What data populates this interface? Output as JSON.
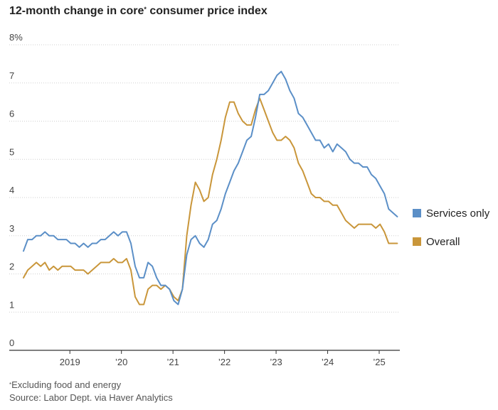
{
  "chart_data": {
    "type": "line",
    "title_main": "12-month change in core",
    "title_sup": "*",
    "title_end": " consumer price index",
    "y_top_label": "8%",
    "ylim": [
      0,
      8
    ],
    "y_ticks": [
      0,
      1,
      2,
      3,
      4,
      5,
      6,
      7
    ],
    "xlim": [
      2018.1,
      2025.4
    ],
    "x_ticks": [
      {
        "value": 2019,
        "label": "2019"
      },
      {
        "value": 2020,
        "label": "’20"
      },
      {
        "value": 2021,
        "label": "’21"
      },
      {
        "value": 2022,
        "label": "’22"
      },
      {
        "value": 2023,
        "label": "’23"
      },
      {
        "value": 2024,
        "label": "’24"
      },
      {
        "value": 2025,
        "label": "’25"
      }
    ],
    "x_start": 2018.1,
    "x_step_months": 1,
    "series": [
      {
        "name": "Services only",
        "color": "#5b8fc7",
        "values": [
          2.6,
          2.9,
          2.9,
          3.0,
          3.0,
          3.1,
          3.0,
          3.0,
          2.9,
          2.9,
          2.9,
          2.8,
          2.8,
          2.7,
          2.8,
          2.7,
          2.8,
          2.8,
          2.9,
          2.9,
          3.0,
          3.1,
          3.0,
          3.1,
          3.1,
          2.8,
          2.2,
          1.9,
          1.9,
          2.3,
          2.2,
          1.9,
          1.7,
          1.7,
          1.6,
          1.3,
          1.2,
          1.6,
          2.5,
          2.9,
          3.0,
          2.8,
          2.7,
          2.9,
          3.3,
          3.4,
          3.7,
          4.1,
          4.4,
          4.7,
          4.9,
          5.2,
          5.5,
          5.6,
          6.1,
          6.7,
          6.7,
          6.8,
          7.0,
          7.2,
          7.3,
          7.1,
          6.8,
          6.6,
          6.2,
          6.1,
          5.9,
          5.7,
          5.5,
          5.5,
          5.3,
          5.4,
          5.2,
          5.4,
          5.3,
          5.2,
          5.0,
          4.9,
          4.9,
          4.8,
          4.8,
          4.6,
          4.5,
          4.3,
          4.1,
          3.7,
          3.6,
          3.5
        ]
      },
      {
        "name": "Overall",
        "color": "#c9963a",
        "values": [
          1.9,
          2.1,
          2.2,
          2.3,
          2.2,
          2.3,
          2.1,
          2.2,
          2.1,
          2.2,
          2.2,
          2.2,
          2.1,
          2.1,
          2.1,
          2.0,
          2.1,
          2.2,
          2.3,
          2.3,
          2.3,
          2.4,
          2.3,
          2.3,
          2.4,
          2.1,
          1.4,
          1.2,
          1.2,
          1.6,
          1.7,
          1.7,
          1.6,
          1.7,
          1.6,
          1.4,
          1.3,
          1.6,
          3.0,
          3.8,
          4.4,
          4.2,
          3.9,
          4.0,
          4.6,
          5.0,
          5.5,
          6.1,
          6.5,
          6.5,
          6.2,
          6.0,
          5.9,
          5.9,
          6.3,
          6.6,
          6.3,
          6.0,
          5.7,
          5.5,
          5.5,
          5.6,
          5.5,
          5.3,
          4.9,
          4.7,
          4.4,
          4.1,
          4.0,
          4.0,
          3.9,
          3.9,
          3.8,
          3.8,
          3.6,
          3.4,
          3.3,
          3.2,
          3.3,
          3.3,
          3.3,
          3.3,
          3.2,
          3.3,
          3.1,
          2.8,
          2.8,
          2.8
        ]
      }
    ]
  },
  "footnotes": {
    "note": "Excluding food and energy",
    "note_marker": "*",
    "source": "Source: Labor Dept. via Haver Analytics"
  }
}
